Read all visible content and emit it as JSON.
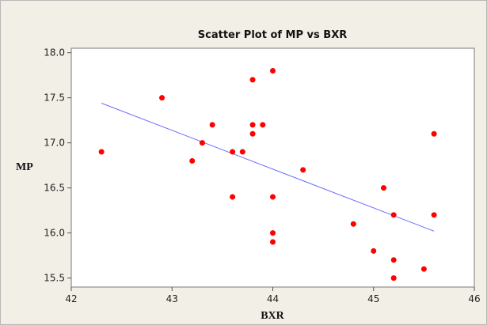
{
  "chart_data": {
    "type": "scatter",
    "title": "Scatter Plot of MP vs BXR",
    "xlabel": "BXR",
    "ylabel": "MP",
    "xlim": [
      42,
      46
    ],
    "ylim": [
      15.4,
      18.05
    ],
    "xticks": [
      "42",
      "43",
      "44",
      "45",
      "46"
    ],
    "yticks": [
      "15.5",
      "16.0",
      "16.5",
      "17.0",
      "17.5",
      "18.0"
    ],
    "grid": false,
    "colors": {
      "points": "#ff0000",
      "trendline": "#6b6bff",
      "background": "#f1efe6",
      "plot_area": "#ffffff"
    },
    "points": [
      {
        "x": 42.3,
        "y": 16.9
      },
      {
        "x": 42.9,
        "y": 17.5
      },
      {
        "x": 43.2,
        "y": 16.8
      },
      {
        "x": 43.3,
        "y": 17.0
      },
      {
        "x": 43.4,
        "y": 17.2
      },
      {
        "x": 43.6,
        "y": 16.9
      },
      {
        "x": 43.6,
        "y": 16.4
      },
      {
        "x": 43.7,
        "y": 16.9
      },
      {
        "x": 43.8,
        "y": 17.7
      },
      {
        "x": 43.8,
        "y": 17.2
      },
      {
        "x": 43.8,
        "y": 17.1
      },
      {
        "x": 43.9,
        "y": 17.2
      },
      {
        "x": 44.0,
        "y": 17.8
      },
      {
        "x": 44.0,
        "y": 16.4
      },
      {
        "x": 44.0,
        "y": 16.0
      },
      {
        "x": 44.0,
        "y": 15.9
      },
      {
        "x": 44.3,
        "y": 16.7
      },
      {
        "x": 44.8,
        "y": 16.1
      },
      {
        "x": 45.0,
        "y": 15.8
      },
      {
        "x": 45.1,
        "y": 16.5
      },
      {
        "x": 45.2,
        "y": 16.2
      },
      {
        "x": 45.2,
        "y": 15.7
      },
      {
        "x": 45.2,
        "y": 15.5
      },
      {
        "x": 45.5,
        "y": 15.6
      },
      {
        "x": 45.6,
        "y": 17.1
      },
      {
        "x": 45.6,
        "y": 16.2
      }
    ],
    "trendline": {
      "x": [
        42.3,
        45.6
      ],
      "y": [
        17.44,
        16.02
      ]
    }
  }
}
